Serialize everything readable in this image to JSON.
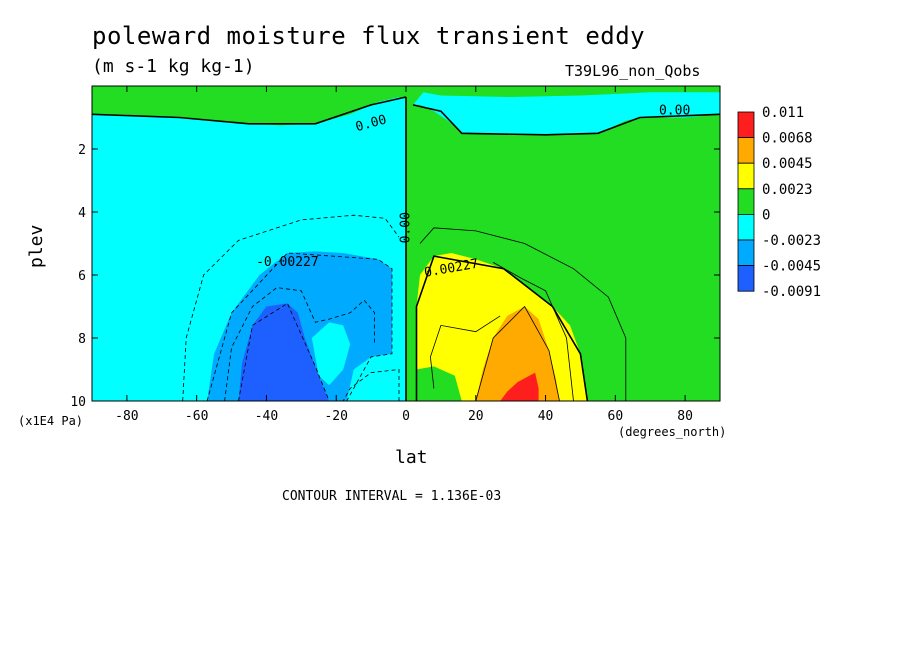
{
  "header": {
    "title": "poleward moisture flux transient eddy",
    "units": "(m s-1 kg kg-1)",
    "dataset": "T39L96_non_Qobs"
  },
  "footer": {
    "contour_interval": "CONTOUR INTERVAL = 1.136E-03"
  },
  "colors": {
    "red": "#ff1e1e",
    "orange": "#ffaa00",
    "yellow": "#ffff00",
    "green": "#22dd22",
    "cyan": "#00ffff",
    "light_blue": "#00aaff",
    "blue": "#1e60ff"
  },
  "chart_data": {
    "type": "heatmap",
    "title": "poleward moisture flux transient eddy",
    "xlabel": "lat",
    "ylabel": "plev",
    "x_unit": "(degrees_north)",
    "y_unit": "(x1E4 Pa)",
    "xlim": [
      -90,
      90
    ],
    "ylim": [
      10,
      0
    ],
    "x_ticks": [
      -80,
      -60,
      -40,
      -20,
      0,
      20,
      40,
      60,
      80
    ],
    "x_tick_labels": [
      "-80",
      "-60",
      "-40",
      "-20",
      "0",
      "20",
      "40",
      "60",
      "80"
    ],
    "y_ticks": [
      2,
      4,
      6,
      8,
      10
    ],
    "y_tick_labels": [
      "2",
      "4",
      "6",
      "8",
      "10"
    ],
    "contour_interval": 0.001136,
    "legend": {
      "placement": "right",
      "levels": [
        "0.011",
        "0.0068",
        "0.0045",
        "0.0023",
        "0",
        "-0.0023",
        "-0.0045",
        "-0.0091"
      ],
      "colors": [
        "#ff1e1e",
        "#ffaa00",
        "#ffff00",
        "#22dd22",
        "#00ffff",
        "#00aaff",
        "#1e60ff"
      ]
    },
    "contour_labels": [
      {
        "text": "0.00",
        "lat": -10,
        "plev": 1.2
      },
      {
        "text": "0.00",
        "lat": 77,
        "plev": 0.8
      },
      {
        "text": "0.00",
        "lat": 0,
        "plev": 4.5
      },
      {
        "text": "-0.00227",
        "lat": -34,
        "plev": 5.6
      },
      {
        "text": "0.00227",
        "lat": 13,
        "plev": 5.8
      }
    ],
    "regions": [
      {
        "name": "background-positive",
        "color": "green",
        "poly": [
          [
            -90,
            0
          ],
          [
            90,
            0
          ],
          [
            90,
            10
          ],
          [
            -90,
            10
          ]
        ]
      },
      {
        "name": "nh-upper-cyan",
        "color": "cyan",
        "poly": [
          [
            2,
            0.6
          ],
          [
            5,
            0.2
          ],
          [
            10,
            0.3
          ],
          [
            30,
            0.35
          ],
          [
            50,
            0.3
          ],
          [
            70,
            0.2
          ],
          [
            90,
            0.2
          ],
          [
            90,
            0.9
          ],
          [
            80,
            1.0
          ],
          [
            67,
            1.0
          ],
          [
            63,
            1.1
          ],
          [
            55,
            1.5
          ],
          [
            40,
            1.55
          ],
          [
            25,
            1.55
          ],
          [
            16,
            1.5
          ],
          [
            12,
            1.1
          ],
          [
            8,
            0.8
          ],
          [
            4,
            0.6
          ]
        ]
      },
      {
        "name": "sh-cyan",
        "color": "cyan",
        "poly": [
          [
            -90,
            0.9
          ],
          [
            -80,
            0.95
          ],
          [
            -65,
            1.0
          ],
          [
            -55,
            1.1
          ],
          [
            -45,
            1.2
          ],
          [
            -36,
            1.25
          ],
          [
            -26,
            1.2
          ],
          [
            -16,
            0.9
          ],
          [
            -8,
            0.5
          ],
          [
            -2,
            0.35
          ],
          [
            0,
            0.4
          ],
          [
            0,
            10
          ],
          [
            -90,
            10
          ]
        ]
      },
      {
        "name": "sh-top-green",
        "color": "green",
        "poly": [
          [
            -52,
            0.02
          ],
          [
            -20,
            0.02
          ],
          [
            -14,
            0.2
          ],
          [
            -8,
            0.3
          ],
          [
            -3,
            0.25
          ],
          [
            0,
            0.3
          ],
          [
            0,
            0.4
          ],
          [
            -2,
            0.35
          ],
          [
            -8,
            0.5
          ],
          [
            -16,
            0.45
          ],
          [
            -30,
            0.45
          ],
          [
            -44,
            0.4
          ],
          [
            -50,
            0.25
          ]
        ]
      },
      {
        "name": "sh-light-blue",
        "color": "light_blue",
        "poly": [
          [
            -57,
            10
          ],
          [
            -55,
            8.5
          ],
          [
            -50,
            7.2
          ],
          [
            -42,
            6
          ],
          [
            -34,
            5.3
          ],
          [
            -26,
            5.25
          ],
          [
            -18,
            5.3
          ],
          [
            -8,
            5.5
          ],
          [
            -4,
            5.8
          ],
          [
            -4,
            7.5
          ],
          [
            -4,
            8.5
          ],
          [
            -10,
            8.6
          ],
          [
            -15,
            9.0
          ],
          [
            -17,
            10
          ]
        ]
      },
      {
        "name": "sh-light-blue-notch",
        "color": "cyan",
        "poly": [
          [
            -27,
            8.0
          ],
          [
            -22,
            7.5
          ],
          [
            -18,
            7.6
          ],
          [
            -16,
            8.2
          ],
          [
            -18,
            9.0
          ],
          [
            -22,
            9.5
          ],
          [
            -25,
            9.2
          ]
        ]
      },
      {
        "name": "sh-blue",
        "color": "blue",
        "poly": [
          [
            -48,
            10
          ],
          [
            -47,
            8.8
          ],
          [
            -44,
            7.6
          ],
          [
            -40,
            7.0
          ],
          [
            -34,
            6.9
          ],
          [
            -31,
            7.2
          ],
          [
            -29,
            8.0
          ],
          [
            -26,
            8.9
          ],
          [
            -24,
            9.5
          ],
          [
            -22,
            10
          ]
        ]
      },
      {
        "name": "nh-yellow",
        "color": "yellow",
        "poly": [
          [
            3,
            10
          ],
          [
            3,
            8.5
          ],
          [
            3,
            7.0
          ],
          [
            4,
            6.0
          ],
          [
            8,
            5.4
          ],
          [
            13,
            5.3
          ],
          [
            20,
            5.5
          ],
          [
            28,
            5.8
          ],
          [
            36,
            6.5
          ],
          [
            42,
            7.0
          ],
          [
            47,
            7.6
          ],
          [
            50,
            8.5
          ],
          [
            52,
            10
          ]
        ]
      },
      {
        "name": "nh-yellow-notch",
        "color": "green",
        "poly": [
          [
            3,
            10
          ],
          [
            3,
            9.0
          ],
          [
            8,
            8.9
          ],
          [
            14,
            9.2
          ],
          [
            16,
            10
          ]
        ]
      },
      {
        "name": "nh-orange",
        "color": "orange",
        "poly": [
          [
            20,
            10
          ],
          [
            22,
            9.0
          ],
          [
            25,
            8.0
          ],
          [
            29,
            7.3
          ],
          [
            34,
            7.0
          ],
          [
            38,
            7.4
          ],
          [
            41,
            8.4
          ],
          [
            43,
            9.3
          ],
          [
            44,
            10
          ]
        ]
      },
      {
        "name": "nh-red",
        "color": "red",
        "poly": [
          [
            27,
            10
          ],
          [
            29,
            9.7
          ],
          [
            32,
            9.4
          ],
          [
            37,
            9.1
          ],
          [
            38,
            9.6
          ],
          [
            38,
            10
          ]
        ]
      }
    ],
    "contour_lines": [
      {
        "style": "solid",
        "points": [
          [
            -90,
            0.9
          ],
          [
            -65,
            1.0
          ],
          [
            -45,
            1.2
          ],
          [
            -26,
            1.2
          ],
          [
            -10,
            0.6
          ],
          [
            0,
            0.35
          ]
        ]
      },
      {
        "style": "solid",
        "points": [
          [
            0,
            0.35
          ],
          [
            0,
            10
          ]
        ]
      },
      {
        "style": "solid",
        "points": [
          [
            2,
            0.6
          ],
          [
            10,
            0.8
          ],
          [
            16,
            1.5
          ],
          [
            40,
            1.55
          ],
          [
            55,
            1.5
          ],
          [
            67,
            1.0
          ],
          [
            90,
            0.9
          ]
        ]
      },
      {
        "style": "solid",
        "points": [
          [
            3,
            10
          ],
          [
            3,
            7
          ],
          [
            8,
            5.4
          ],
          [
            28,
            5.8
          ],
          [
            42,
            7.0
          ],
          [
            50,
            8.5
          ],
          [
            52,
            10
          ]
        ]
      },
      {
        "style": "solid",
        "points": [
          [
            20,
            10
          ],
          [
            25,
            8.0
          ],
          [
            34,
            7.0
          ],
          [
            41,
            8.4
          ],
          [
            44,
            10
          ]
        ]
      },
      {
        "style": "solid",
        "points": [
          [
            8,
            9.6
          ],
          [
            7,
            8.6
          ],
          [
            10,
            7.6
          ],
          [
            20,
            7.8
          ],
          [
            27,
            7.3
          ]
        ]
      },
      {
        "style": "solid",
        "points": [
          [
            48,
            10
          ],
          [
            46,
            8.0
          ],
          [
            40,
            6.5
          ],
          [
            33,
            6.1
          ],
          [
            25,
            5.6
          ]
        ]
      },
      {
        "style": "solid",
        "points": [
          [
            63,
            10
          ],
          [
            63,
            8.0
          ],
          [
            58,
            6.7
          ],
          [
            48,
            5.8
          ],
          [
            34,
            5.0
          ],
          [
            20,
            4.6
          ],
          [
            8,
            4.5
          ],
          [
            4,
            5.0
          ]
        ]
      },
      {
        "style": "dashed",
        "points": [
          [
            -57,
            10
          ],
          [
            -50,
            7.2
          ],
          [
            -34,
            5.3
          ],
          [
            -8,
            5.5
          ],
          [
            -4,
            5.8
          ],
          [
            -4,
            8.5
          ],
          [
            -10,
            8.6
          ],
          [
            -17,
            10
          ]
        ]
      },
      {
        "style": "dashed",
        "points": [
          [
            -48,
            10
          ],
          [
            -44,
            7.6
          ],
          [
            -34,
            6.9
          ],
          [
            -26,
            8.9
          ],
          [
            -22,
            10
          ]
        ]
      },
      {
        "style": "dashed",
        "points": [
          [
            -52,
            10
          ],
          [
            -50,
            8.3
          ],
          [
            -44,
            7.0
          ],
          [
            -37,
            6.4
          ],
          [
            -30,
            6.5
          ],
          [
            -26,
            7.5
          ],
          [
            -22,
            7.4
          ],
          [
            -16,
            7.2
          ],
          [
            -12,
            6.8
          ],
          [
            -9,
            7.2
          ],
          [
            -9,
            8.2
          ]
        ]
      },
      {
        "style": "dashed",
        "points": [
          [
            -64,
            10
          ],
          [
            -63,
            8.0
          ],
          [
            -58,
            6.0
          ],
          [
            -48,
            4.9
          ],
          [
            -30,
            4.25
          ],
          [
            -15,
            4.1
          ],
          [
            -6,
            4.2
          ],
          [
            -2,
            4.8
          ]
        ]
      },
      {
        "style": "dashed",
        "points": [
          [
            -2,
            10
          ],
          [
            -2,
            9.0
          ],
          [
            -10,
            9.1
          ],
          [
            -16,
            9.6
          ],
          [
            -18,
            10
          ]
        ]
      }
    ]
  }
}
